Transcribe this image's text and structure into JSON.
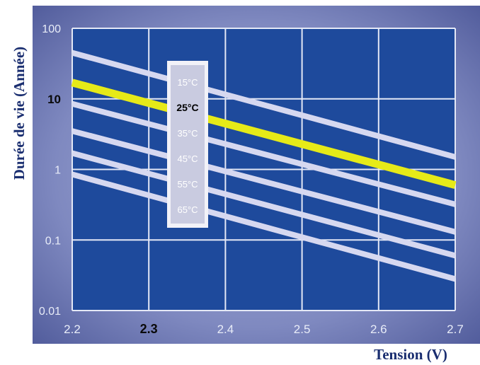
{
  "chart_data": {
    "type": "line",
    "title": "",
    "xlabel": "Tension (V)",
    "ylabel": "Durée de vie (Année)",
    "xlim": [
      2.2,
      2.7
    ],
    "ylim": [
      0.01,
      100
    ],
    "y_scale": "log",
    "grid": true,
    "x_ticks": [
      {
        "value": 2.2,
        "label": "2.2",
        "bold": false
      },
      {
        "value": 2.3,
        "label": "2.3",
        "bold": true
      },
      {
        "value": 2.4,
        "label": "2.4",
        "bold": false
      },
      {
        "value": 2.5,
        "label": "2.5",
        "bold": false
      },
      {
        "value": 2.6,
        "label": "2.6",
        "bold": false
      },
      {
        "value": 2.7,
        "label": "2.7",
        "bold": false
      }
    ],
    "y_ticks": [
      {
        "value": 100,
        "label": "100",
        "bold": false
      },
      {
        "value": 10,
        "label": "10",
        "bold": true
      },
      {
        "value": 1,
        "label": "1",
        "bold": false
      },
      {
        "value": 0.1,
        "label": "0.1",
        "bold": false
      },
      {
        "value": 0.01,
        "label": "0.01",
        "bold": false
      }
    ],
    "legend_placement": "inside-left",
    "series": [
      {
        "name": "15°C",
        "x": [
          2.2,
          2.7
        ],
        "y": [
          45,
          1.5
        ],
        "color": "#d6d8f0",
        "highlight": false
      },
      {
        "name": "25°C",
        "x": [
          2.2,
          2.7
        ],
        "y": [
          17,
          0.6
        ],
        "color": "#e6ea18",
        "highlight": true
      },
      {
        "name": "35°C",
        "x": [
          2.2,
          2.7
        ],
        "y": [
          8.5,
          0.32
        ],
        "color": "#d6d8f0",
        "highlight": false
      },
      {
        "name": "45°C",
        "x": [
          2.2,
          2.7
        ],
        "y": [
          3.5,
          0.13
        ],
        "color": "#d6d8f0",
        "highlight": false
      },
      {
        "name": "55°C",
        "x": [
          2.2,
          2.7
        ],
        "y": [
          1.7,
          0.06
        ],
        "color": "#d6d8f0",
        "highlight": false
      },
      {
        "name": "65°C",
        "x": [
          2.2,
          2.7
        ],
        "y": [
          0.85,
          0.028
        ],
        "color": "#d6d8f0",
        "highlight": false
      }
    ]
  },
  "colors": {
    "plot_background": "#1e4a9c",
    "frame_background": "#5f6aa8",
    "grid": "#e4e8f6",
    "tick_label": "#e8ecf8",
    "tick_label_bold": "#0a0a0a",
    "axis_title": "#1a2e70",
    "legend_background": "#f2f2f8",
    "legend_text": "#ffffff",
    "legend_text_highlight": "#000000"
  }
}
